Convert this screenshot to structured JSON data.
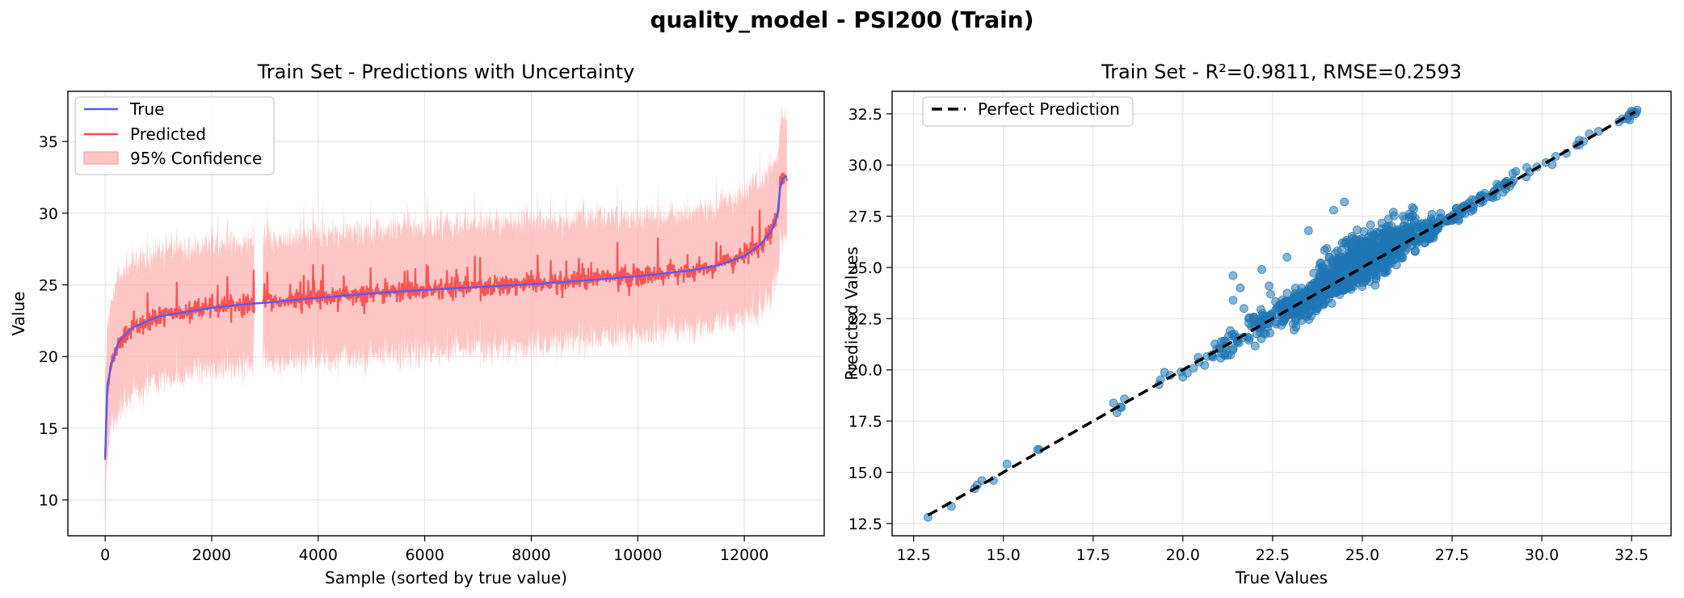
{
  "suptitle": "quality_model - PSI200 (Train)",
  "chart_data": [
    {
      "type": "line",
      "title": "Train Set - Predictions with Uncertainty",
      "xlabel": "Sample (sorted by true value)",
      "ylabel": "Value",
      "xlim": [
        -700,
        13500
      ],
      "ylim": [
        7.5,
        38.5
      ],
      "xticks": [
        0,
        2000,
        4000,
        6000,
        8000,
        10000,
        12000
      ],
      "yticks": [
        10,
        15,
        20,
        25,
        30,
        35
      ],
      "grid": true,
      "legend_position": "top-left",
      "legend": [
        {
          "label": "True",
          "color": "#5b5bf0"
        },
        {
          "label": "Predicted",
          "color": "#ff4d4d"
        },
        {
          "label": "95% Confidence",
          "color": "#ffb3b3"
        }
      ],
      "true_curve": {
        "x": [
          0,
          40,
          120,
          250,
          500,
          1000,
          1500,
          2000,
          2500,
          2800,
          3000,
          4000,
          5000,
          6000,
          7000,
          8000,
          9000,
          10000,
          11000,
          11500,
          12000,
          12300,
          12500,
          12600,
          12650,
          12680,
          12750,
          12800
        ],
        "y": [
          12.9,
          18.0,
          19.5,
          21.0,
          22.0,
          22.8,
          23.1,
          23.4,
          23.6,
          23.7,
          23.75,
          24.1,
          24.4,
          24.65,
          24.85,
          25.05,
          25.3,
          25.6,
          26.0,
          26.35,
          27.0,
          27.8,
          28.7,
          29.6,
          30.5,
          32.2,
          32.5,
          32.6
        ]
      },
      "predicted_band_half_width": [
        {
          "x": 0,
          "hw": 4.5
        },
        {
          "x": 500,
          "hw": 4.5
        },
        {
          "x": 2800,
          "hw": 4.3
        },
        {
          "x": 8000,
          "hw": 4.3
        },
        {
          "x": 11000,
          "hw": 4.0
        },
        {
          "x": 12600,
          "hw": 4.5
        }
      ],
      "predicted_gap": [
        2800,
        2960
      ]
    },
    {
      "type": "scatter",
      "title": "Train Set - R²=0.9811, RMSE=0.2593",
      "xlabel": "True Values",
      "ylabel": "Predicted Values",
      "xlim": [
        11.9,
        33.6
      ],
      "ylim": [
        11.9,
        33.6
      ],
      "xticks": [
        12.5,
        15.0,
        17.5,
        20.0,
        22.5,
        25.0,
        27.5,
        30.0,
        32.5
      ],
      "yticks": [
        12.5,
        15.0,
        17.5,
        20.0,
        22.5,
        25.0,
        27.5,
        30.0,
        32.5
      ],
      "tick_labels": [
        "12.5",
        "15.0",
        "17.5",
        "20.0",
        "22.5",
        "25.0",
        "27.5",
        "30.0",
        "32.5"
      ],
      "grid": true,
      "legend_position": "top-left",
      "legend": [
        {
          "label": "Perfect Prediction",
          "color": "#000000"
        }
      ],
      "point_color": "#1f77b4",
      "reference_line": {
        "x": [
          12.9,
          32.6
        ],
        "y": [
          12.9,
          32.6
        ]
      },
      "outliers": [
        {
          "x": 21.4,
          "y": 24.6
        },
        {
          "x": 21.6,
          "y": 24.0
        },
        {
          "x": 22.2,
          "y": 24.9
        },
        {
          "x": 22.4,
          "y": 24.1
        },
        {
          "x": 22.9,
          "y": 25.5
        },
        {
          "x": 23.5,
          "y": 26.8
        },
        {
          "x": 24.5,
          "y": 28.2
        },
        {
          "x": 24.2,
          "y": 27.8
        },
        {
          "x": 21.4,
          "y": 23.4
        },
        {
          "x": 21.7,
          "y": 23.0
        },
        {
          "x": 12.9,
          "y": 12.8
        },
        {
          "x": 14.2,
          "y": 14.2
        },
        {
          "x": 14.4,
          "y": 14.6
        },
        {
          "x": 15.1,
          "y": 15.4
        },
        {
          "x": 16.0,
          "y": 16.1
        }
      ]
    }
  ]
}
